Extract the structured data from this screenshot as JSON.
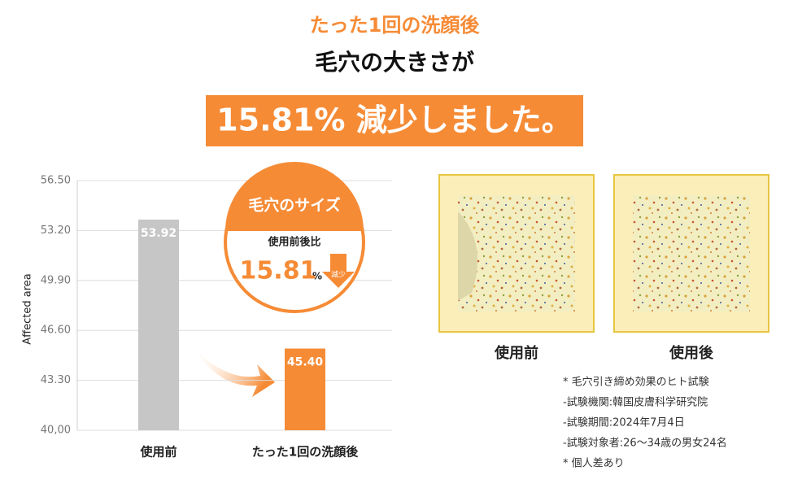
{
  "header": {
    "kicker": "たった1回の洗顔後",
    "title": "毛穴の大きさが",
    "banner": "15.81% 減少しました。"
  },
  "chart_data": {
    "type": "bar",
    "ylabel": "Affected area",
    "categories": [
      "使用前",
      "たった1回の洗顔後"
    ],
    "values": [
      53.92,
      45.4
    ],
    "value_labels": [
      "53.92",
      "45.40"
    ],
    "colors": [
      "#c6c6c6",
      "#f68b36"
    ],
    "ylim": [
      40,
      56.5
    ],
    "yticks": [
      {
        "value": 40,
        "label": "40,00"
      },
      {
        "value": 43.3,
        "label": "43.30"
      },
      {
        "value": 46.6,
        "label": "46.60"
      },
      {
        "value": 49.9,
        "label": "49.90"
      },
      {
        "value": 53.2,
        "label": "53.20"
      },
      {
        "value": 56.5,
        "label": "56.50"
      }
    ],
    "grid": true
  },
  "badge": {
    "title": "毛穴のサイズ",
    "subtitle": "使用前後比",
    "value": 15.81,
    "unit": "%",
    "arrow": "減少"
  },
  "images": {
    "labels": [
      "使用前",
      "使用後"
    ]
  },
  "notes": [
    "* 毛穴引き締め効果のヒト試験",
    "-試験機関:韓国皮膚科学研究院",
    "-試験期間:2024年7月4日",
    "-試験対象者:26～34歳の男女24名",
    "* 個人差あり"
  ]
}
